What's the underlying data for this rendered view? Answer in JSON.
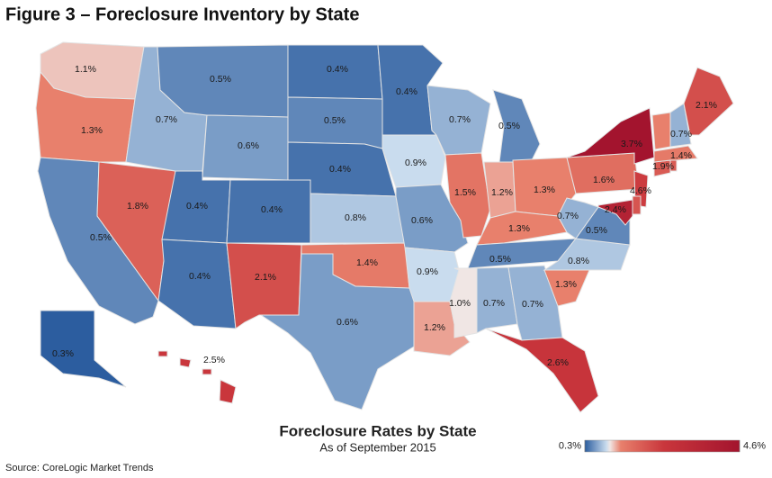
{
  "chart_data": {
    "type": "choropleth",
    "title": "Figure 3 – Foreclosure Inventory by State",
    "map_title": "Foreclosure Rates by State",
    "subtitle": "As of September 2015",
    "source": "Source: CoreLogic Market Trends",
    "values": [
      1.1,
      1.3,
      0.5,
      1.8,
      0.7,
      0.5,
      0.6,
      0.4,
      0.4,
      0.4,
      2.1,
      0.4,
      0.5,
      0.4,
      0.8,
      1.4,
      0.6,
      0.4,
      0.9,
      0.6,
      0.9,
      1.2,
      0.7,
      1.5,
      0.5,
      1.2,
      1.3,
      1.3,
      0.5,
      1.0,
      0.7,
      0.7,
      2.6,
      1.3,
      0.8,
      0.5,
      0.7,
      1.6,
      3.7,
      2.4,
      4.6,
      1.9,
      1.4,
      0.7,
      2.1,
      0.3,
      2.5,
      1.3,
      2.0,
      1.9
    ],
    "value_labels": [
      "1.1%",
      "1.3%",
      "0.5%",
      "1.8%",
      "0.7%",
      "0.5%",
      "0.6%",
      "0.4%",
      "0.4%",
      "0.4%",
      "2.1%",
      "0.4%",
      "0.5%",
      "0.4%",
      "0.8%",
      "1.4%",
      "0.6%",
      "0.4%",
      "0.9%",
      "0.6%",
      "0.9%",
      "1.2%",
      "0.7%",
      "1.5%",
      "0.5%",
      "1.2%",
      "1.3%",
      "1.3%",
      "0.5%",
      "1.0%",
      "0.7%",
      "0.7%",
      "2.6%",
      "1.3%",
      "0.8%",
      "0.5%",
      "0.7%",
      "1.6%",
      "3.7%",
      "2.4%",
      "4.6%",
      "1.9%",
      "1.4%",
      "0.7%",
      "2.1%",
      "0.3%",
      "2.5%",
      null,
      null,
      null
    ],
    "color_stops": [
      {
        "value": 0.3,
        "color": "#2c5d9f"
      },
      {
        "value": 0.9,
        "color": "#c9dcee"
      },
      {
        "value": 1.0,
        "color": "#f0e6e4"
      },
      {
        "value": 1.3,
        "color": "#e8806c"
      },
      {
        "value": 2.5,
        "color": "#c9363c"
      },
      {
        "value": 4.6,
        "color": "#a3142e"
      }
    ],
    "legend_ticks": [
      {
        "value": 0.3,
        "label": "0.3%"
      },
      {
        "value": 4.6,
        "label": "4.6%"
      }
    ]
  }
}
